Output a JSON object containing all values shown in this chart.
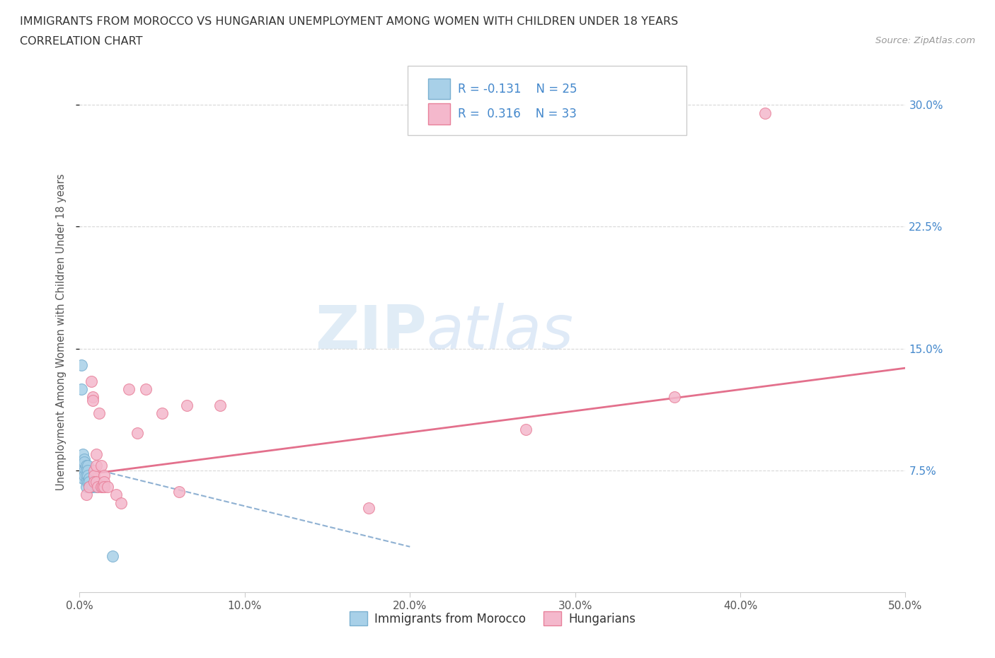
{
  "title_line1": "IMMIGRANTS FROM MOROCCO VS HUNGARIAN UNEMPLOYMENT AMONG WOMEN WITH CHILDREN UNDER 18 YEARS",
  "title_line2": "CORRELATION CHART",
  "source_text": "Source: ZipAtlas.com",
  "ylabel": "Unemployment Among Women with Children Under 18 years",
  "xlim": [
    0.0,
    0.5
  ],
  "ylim": [
    0.0,
    0.32
  ],
  "xtick_labels": [
    "0.0%",
    "10.0%",
    "20.0%",
    "30.0%",
    "40.0%",
    "50.0%"
  ],
  "xtick_vals": [
    0.0,
    0.1,
    0.2,
    0.3,
    0.4,
    0.5
  ],
  "ytick_labels": [
    "7.5%",
    "15.0%",
    "22.5%",
    "30.0%"
  ],
  "ytick_vals": [
    0.075,
    0.15,
    0.225,
    0.3
  ],
  "blue_color": "#a8d0e8",
  "pink_color": "#f4b8cc",
  "blue_edge": "#7ab0d0",
  "pink_edge": "#e8809a",
  "blue_line": "#6090c0",
  "pink_line": "#e06080",
  "R_blue": -0.131,
  "N_blue": 25,
  "R_pink": 0.316,
  "N_pink": 33,
  "watermark_zip": "ZIP",
  "watermark_atlas": "atlas",
  "background_color": "#ffffff",
  "grid_color": "#d8d8d8",
  "right_tick_color": "#4488cc",
  "blue_scatter_x": [
    0.001,
    0.001,
    0.002,
    0.002,
    0.002,
    0.003,
    0.003,
    0.003,
    0.003,
    0.004,
    0.004,
    0.004,
    0.004,
    0.004,
    0.005,
    0.005,
    0.005,
    0.005,
    0.006,
    0.006,
    0.006,
    0.007,
    0.008,
    0.01,
    0.02
  ],
  "blue_scatter_y": [
    0.14,
    0.125,
    0.085,
    0.075,
    0.07,
    0.082,
    0.08,
    0.075,
    0.072,
    0.078,
    0.075,
    0.072,
    0.068,
    0.065,
    0.078,
    0.075,
    0.072,
    0.068,
    0.07,
    0.068,
    0.065,
    0.065,
    0.065,
    0.065,
    0.022
  ],
  "pink_scatter_x": [
    0.004,
    0.006,
    0.007,
    0.008,
    0.008,
    0.009,
    0.009,
    0.009,
    0.01,
    0.01,
    0.01,
    0.011,
    0.012,
    0.013,
    0.013,
    0.014,
    0.015,
    0.015,
    0.015,
    0.017,
    0.022,
    0.025,
    0.03,
    0.035,
    0.04,
    0.05,
    0.06,
    0.065,
    0.085,
    0.175,
    0.27,
    0.36,
    0.415
  ],
  "pink_scatter_y": [
    0.06,
    0.065,
    0.13,
    0.12,
    0.118,
    0.075,
    0.072,
    0.068,
    0.085,
    0.078,
    0.068,
    0.065,
    0.11,
    0.078,
    0.065,
    0.065,
    0.072,
    0.068,
    0.065,
    0.065,
    0.06,
    0.055,
    0.125,
    0.098,
    0.125,
    0.11,
    0.062,
    0.115,
    0.115,
    0.052,
    0.1,
    0.12,
    0.295
  ],
  "pink_trend_x0": 0.0,
  "pink_trend_y0": 0.072,
  "pink_trend_x1": 0.5,
  "pink_trend_y1": 0.138,
  "blue_trend_x0": 0.0,
  "blue_trend_y0": 0.078,
  "blue_trend_x1": 0.2,
  "blue_trend_y1": 0.028
}
